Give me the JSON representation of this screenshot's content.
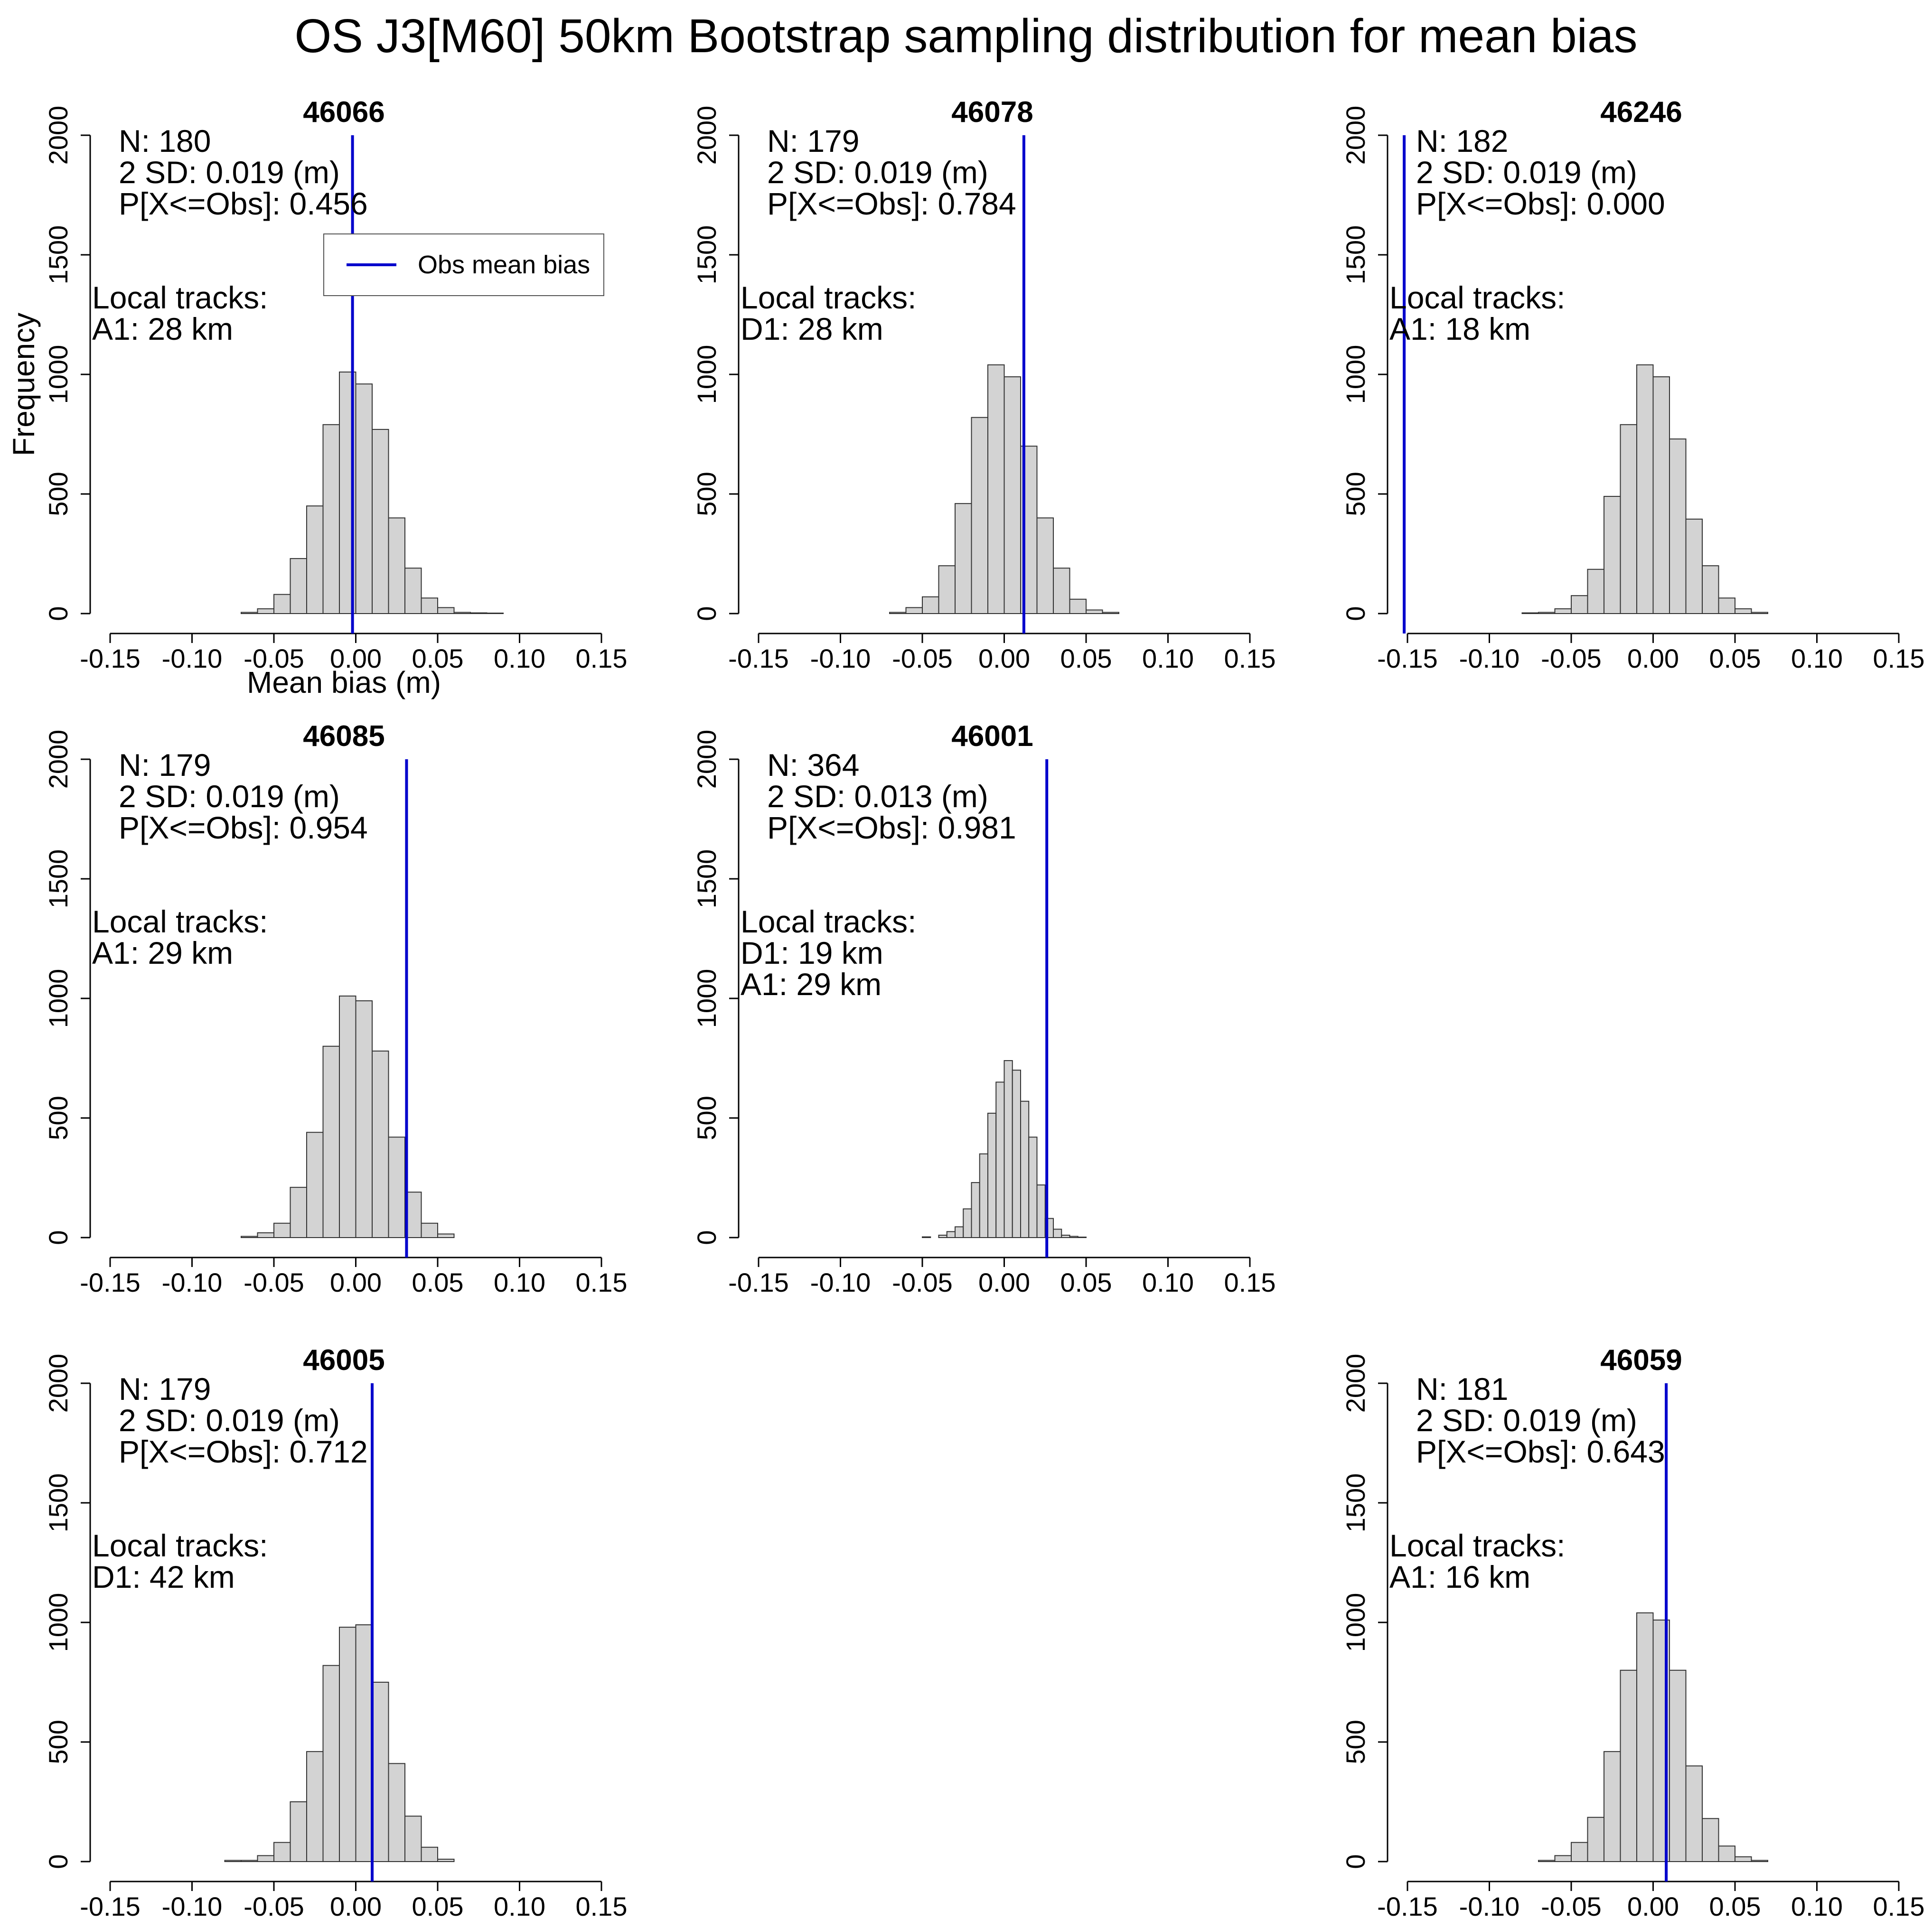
{
  "title": "OS J3[M60] 50km Bootstrap sampling distribution for mean bias",
  "ylabel": "Frequency",
  "xlabel": "Mean bias (m)",
  "legend": {
    "label": "Obs mean bias",
    "color": "#0000cc"
  },
  "colors": {
    "bar_fill": "#d3d3d3",
    "bar_stroke": "#333333",
    "obs_line": "#0000cc"
  },
  "chart_data": [
    {
      "type": "bar",
      "title": "46066",
      "xlim": [
        -0.15,
        0.15
      ],
      "ylim": [
        0,
        2000
      ],
      "xticks": [
        "-0.15",
        "-0.10",
        "-0.05",
        "0.00",
        "0.05",
        "0.10",
        "0.15"
      ],
      "yticks": [
        "0",
        "500",
        "1000",
        "1500",
        "2000"
      ],
      "bin_width": 0.01,
      "bins": [
        [
          -0.07,
          5
        ],
        [
          -0.06,
          20
        ],
        [
          -0.05,
          80
        ],
        [
          -0.04,
          230
        ],
        [
          -0.03,
          450
        ],
        [
          -0.02,
          790
        ],
        [
          -0.01,
          1010
        ],
        [
          0.0,
          960
        ],
        [
          0.01,
          770
        ],
        [
          0.02,
          400
        ],
        [
          0.03,
          190
        ],
        [
          0.04,
          65
        ],
        [
          0.05,
          25
        ],
        [
          0.06,
          5
        ],
        [
          0.07,
          3
        ],
        [
          0.08,
          2
        ]
      ],
      "obs_mean_bias": -0.002,
      "annotations": [
        "N: 180",
        "2 SD: 0.019 (m)",
        "P[X<=Obs]: 0.456"
      ],
      "local_tracks": [
        "Local tracks:",
        "A1: 28 km"
      ],
      "show_legend": true,
      "show_ylabel": true,
      "show_xlabel": true
    },
    {
      "type": "bar",
      "title": "46078",
      "xlim": [
        -0.15,
        0.15
      ],
      "ylim": [
        0,
        2000
      ],
      "xticks": [
        "-0.15",
        "-0.10",
        "-0.05",
        "0.00",
        "0.05",
        "0.10",
        "0.15"
      ],
      "yticks": [
        "0",
        "500",
        "1000",
        "1500",
        "2000"
      ],
      "bin_width": 0.01,
      "bins": [
        [
          -0.07,
          5
        ],
        [
          -0.06,
          25
        ],
        [
          -0.05,
          70
        ],
        [
          -0.04,
          200
        ],
        [
          -0.03,
          460
        ],
        [
          -0.02,
          820
        ],
        [
          -0.01,
          1040
        ],
        [
          0.0,
          990
        ],
        [
          0.01,
          700
        ],
        [
          0.02,
          400
        ],
        [
          0.03,
          190
        ],
        [
          0.04,
          60
        ],
        [
          0.05,
          15
        ],
        [
          0.06,
          5
        ]
      ],
      "obs_mean_bias": 0.012,
      "annotations": [
        "N: 179",
        "2 SD: 0.019 (m)",
        "P[X<=Obs]: 0.784"
      ],
      "local_tracks": [
        "Local tracks:",
        "D1: 28 km"
      ],
      "show_legend": false,
      "show_ylabel": false,
      "show_xlabel": false
    },
    {
      "type": "bar",
      "title": "46246",
      "xlim": [
        -0.15,
        0.15
      ],
      "ylim": [
        0,
        2000
      ],
      "xticks": [
        "-0.15",
        "-0.10",
        "-0.05",
        "0.00",
        "0.05",
        "0.10",
        "0.15"
      ],
      "yticks": [
        "0",
        "500",
        "1000",
        "1500",
        "2000"
      ],
      "bin_width": 0.01,
      "bins": [
        [
          -0.08,
          3
        ],
        [
          -0.07,
          5
        ],
        [
          -0.06,
          20
        ],
        [
          -0.05,
          75
        ],
        [
          -0.04,
          185
        ],
        [
          -0.03,
          490
        ],
        [
          -0.02,
          790
        ],
        [
          -0.01,
          1040
        ],
        [
          0.0,
          990
        ],
        [
          0.01,
          730
        ],
        [
          0.02,
          395
        ],
        [
          0.03,
          200
        ],
        [
          0.04,
          65
        ],
        [
          0.05,
          20
        ],
        [
          0.06,
          5
        ]
      ],
      "obs_mean_bias": -0.152,
      "annotations": [
        "N: 182",
        "2 SD: 0.019 (m)",
        "P[X<=Obs]: 0.000"
      ],
      "local_tracks": [
        "Local tracks:",
        "A1: 18 km"
      ],
      "show_legend": false,
      "show_ylabel": false,
      "show_xlabel": false
    },
    {
      "type": "bar",
      "title": "46085",
      "xlim": [
        -0.15,
        0.15
      ],
      "ylim": [
        0,
        2000
      ],
      "xticks": [
        "-0.15",
        "-0.10",
        "-0.05",
        "0.00",
        "0.05",
        "0.10",
        "0.15"
      ],
      "yticks": [
        "0",
        "500",
        "1000",
        "1500",
        "2000"
      ],
      "bin_width": 0.01,
      "bins": [
        [
          -0.07,
          5
        ],
        [
          -0.06,
          20
        ],
        [
          -0.05,
          60
        ],
        [
          -0.04,
          210
        ],
        [
          -0.03,
          440
        ],
        [
          -0.02,
          800
        ],
        [
          -0.01,
          1010
        ],
        [
          0.0,
          990
        ],
        [
          0.01,
          780
        ],
        [
          0.02,
          420
        ],
        [
          0.03,
          190
        ],
        [
          0.04,
          60
        ],
        [
          0.05,
          15
        ]
      ],
      "obs_mean_bias": 0.031,
      "annotations": [
        "N: 179",
        "2 SD: 0.019 (m)",
        "P[X<=Obs]: 0.954"
      ],
      "local_tracks": [
        "Local tracks:",
        "A1: 29 km"
      ],
      "show_legend": false,
      "show_ylabel": false,
      "show_xlabel": false
    },
    {
      "type": "bar",
      "title": "46001",
      "xlim": [
        -0.15,
        0.15
      ],
      "ylim": [
        0,
        2000
      ],
      "xticks": [
        "-0.15",
        "-0.10",
        "-0.05",
        "0.00",
        "0.05",
        "0.10",
        "0.15"
      ],
      "yticks": [
        "0",
        "500",
        "1000",
        "1500",
        "2000"
      ],
      "bin_width": 0.005,
      "bins": [
        [
          -0.05,
          3
        ],
        [
          -0.04,
          10
        ],
        [
          -0.035,
          25
        ],
        [
          -0.03,
          45
        ],
        [
          -0.025,
          120
        ],
        [
          -0.02,
          230
        ],
        [
          -0.015,
          350
        ],
        [
          -0.01,
          520
        ],
        [
          -0.005,
          650
        ],
        [
          0.0,
          740
        ],
        [
          0.005,
          700
        ],
        [
          0.01,
          570
        ],
        [
          0.015,
          420
        ],
        [
          0.02,
          220
        ],
        [
          0.025,
          80
        ],
        [
          0.03,
          35
        ],
        [
          0.035,
          10
        ],
        [
          0.04,
          5
        ],
        [
          0.045,
          2
        ]
      ],
      "obs_mean_bias": 0.026,
      "annotations": [
        "N: 364",
        "2 SD: 0.013 (m)",
        "P[X<=Obs]: 0.981"
      ],
      "local_tracks": [
        "Local tracks:",
        "D1: 19 km",
        "A1: 29 km"
      ],
      "show_legend": false,
      "show_ylabel": false,
      "show_xlabel": false
    },
    {
      "type": "bar",
      "title": "46005",
      "xlim": [
        -0.15,
        0.15
      ],
      "ylim": [
        0,
        2000
      ],
      "xticks": [
        "-0.15",
        "-0.10",
        "-0.05",
        "0.00",
        "0.05",
        "0.10",
        "0.15"
      ],
      "yticks": [
        "0",
        "500",
        "1000",
        "1500",
        "2000"
      ],
      "bin_width": 0.01,
      "bins": [
        [
          -0.08,
          5
        ],
        [
          -0.07,
          5
        ],
        [
          -0.06,
          25
        ],
        [
          -0.05,
          80
        ],
        [
          -0.04,
          250
        ],
        [
          -0.03,
          460
        ],
        [
          -0.02,
          820
        ],
        [
          -0.01,
          980
        ],
        [
          0.0,
          990
        ],
        [
          0.01,
          750
        ],
        [
          0.02,
          410
        ],
        [
          0.03,
          190
        ],
        [
          0.04,
          60
        ],
        [
          0.05,
          10
        ]
      ],
      "obs_mean_bias": 0.01,
      "annotations": [
        "N: 179",
        "2 SD: 0.019 (m)",
        "P[X<=Obs]: 0.712"
      ],
      "local_tracks": [
        "Local tracks:",
        "D1: 42 km"
      ],
      "show_legend": false,
      "show_ylabel": false,
      "show_xlabel": false
    },
    {
      "type": "bar",
      "title": "46059",
      "xlim": [
        -0.15,
        0.15
      ],
      "ylim": [
        0,
        2000
      ],
      "xticks": [
        "-0.15",
        "-0.10",
        "-0.05",
        "0.00",
        "0.05",
        "0.10",
        "0.15"
      ],
      "yticks": [
        "0",
        "500",
        "1000",
        "1500",
        "2000"
      ],
      "bin_width": 0.01,
      "bins": [
        [
          -0.07,
          5
        ],
        [
          -0.06,
          25
        ],
        [
          -0.05,
          80
        ],
        [
          -0.04,
          185
        ],
        [
          -0.03,
          460
        ],
        [
          -0.02,
          800
        ],
        [
          -0.01,
          1040
        ],
        [
          0.0,
          1010
        ],
        [
          0.01,
          800
        ],
        [
          0.02,
          400
        ],
        [
          0.03,
          180
        ],
        [
          0.04,
          65
        ],
        [
          0.05,
          20
        ],
        [
          0.06,
          5
        ]
      ],
      "obs_mean_bias": 0.008,
      "annotations": [
        "N: 181",
        "2 SD: 0.019 (m)",
        "P[X<=Obs]: 0.643"
      ],
      "local_tracks": [
        "Local tracks:",
        "A1: 16 km"
      ],
      "show_legend": false,
      "show_ylabel": false,
      "show_xlabel": false
    }
  ]
}
